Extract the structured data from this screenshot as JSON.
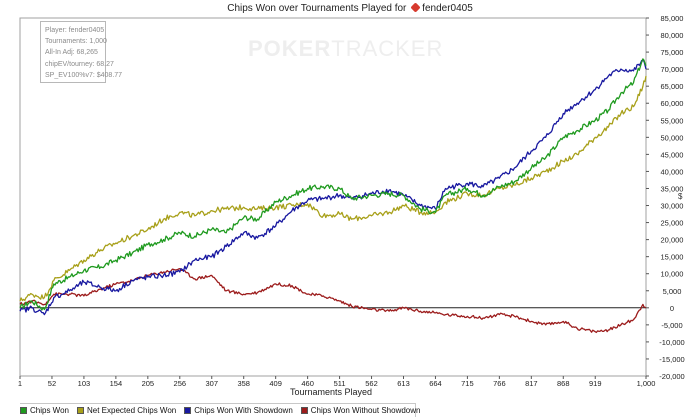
{
  "title": {
    "prefix": "Chips Won over Tournaments Played for",
    "player": "fender0405",
    "brand_icon": "pokertracker-spade-icon"
  },
  "watermark": {
    "bold": "POKER",
    "light": "TRACKER"
  },
  "infobox": {
    "lines": [
      "Player: fender0405",
      "Tournaments: 1,000",
      "All-In Adj: 68,265",
      "chipEV/tourney: 68.27",
      "SP_EV100%v7: $408.77"
    ]
  },
  "legend": [
    {
      "label": "Chips Won",
      "color": "#1f9a1f"
    },
    {
      "label": "Net Expected Chips Won",
      "color": "#a8a01a"
    },
    {
      "label": "Chips Won With Showdown",
      "color": "#1818a0"
    },
    {
      "label": "Chips Won Without Showdown",
      "color": "#9c1c1c"
    }
  ],
  "chart_data": {
    "type": "line",
    "title": "Chips Won over Tournaments Played for fender0405",
    "xlabel": "Tournaments Played",
    "ylabel": "$",
    "xlim": [
      1,
      1000
    ],
    "ylim": [
      -20000,
      85000
    ],
    "x_ticks": [
      1,
      52,
      103,
      154,
      205,
      256,
      307,
      358,
      409,
      460,
      511,
      562,
      613,
      664,
      715,
      766,
      817,
      868,
      919,
      1000
    ],
    "x_tick_labels": [
      "1",
      "52",
      "103",
      "154",
      "205",
      "256",
      "307",
      "358",
      "409",
      "460",
      "511",
      "562",
      "613",
      "664",
      "715",
      "766",
      "817",
      "868",
      "919",
      "1,000"
    ],
    "y_ticks": [
      -20000,
      -15000,
      -10000,
      -5000,
      0,
      5000,
      10000,
      15000,
      20000,
      25000,
      30000,
      35000,
      40000,
      45000,
      50000,
      55000,
      60000,
      65000,
      70000,
      75000,
      80000,
      85000
    ],
    "y_tick_labels": [
      "-20,000",
      "-15,000",
      "-10,000",
      "-5,000",
      "0",
      "5,000",
      "10,000",
      "15,000",
      "20,000",
      "25,000",
      "30,000",
      "35,000",
      "40,000",
      "45,000",
      "50,000",
      "55,000",
      "60,000",
      "65,000",
      "70,000",
      "75,000",
      "80,000",
      "85,000"
    ],
    "legend_position": "bottom-left",
    "grid": false,
    "series": [
      {
        "name": "Chips Won",
        "color": "#1f9a1f",
        "x": [
          1,
          20,
          40,
          55,
          80,
          103,
          130,
          154,
          180,
          205,
          230,
          256,
          280,
          307,
          330,
          358,
          380,
          409,
          435,
          460,
          485,
          511,
          530,
          562,
          590,
          613,
          640,
          664,
          680,
          715,
          740,
          766,
          790,
          817,
          840,
          868,
          890,
          919,
          940,
          960,
          980,
          995,
          1000
        ],
        "y": [
          0,
          2000,
          -500,
          7000,
          9000,
          11000,
          12000,
          14000,
          16000,
          18500,
          20000,
          22000,
          21000,
          23000,
          22000,
          26500,
          26000,
          31000,
          33000,
          35000,
          35500,
          35000,
          32000,
          33000,
          33500,
          33000,
          29000,
          28000,
          33000,
          35000,
          33000,
          35500,
          37000,
          41000,
          44000,
          50000,
          52000,
          55000,
          58000,
          63000,
          66000,
          73000,
          71000
        ]
      },
      {
        "name": "Net Expected Chips Won",
        "color": "#a8a01a",
        "x": [
          1,
          20,
          40,
          55,
          80,
          103,
          130,
          154,
          180,
          205,
          230,
          256,
          280,
          307,
          330,
          358,
          380,
          409,
          435,
          460,
          485,
          511,
          530,
          562,
          590,
          613,
          640,
          664,
          680,
          715,
          740,
          766,
          790,
          817,
          840,
          868,
          890,
          919,
          940,
          960,
          980,
          995,
          1000
        ],
        "y": [
          2000,
          4000,
          3000,
          8000,
          11000,
          14000,
          17000,
          19000,
          21000,
          23000,
          26000,
          28000,
          27000,
          28500,
          29000,
          29500,
          29000,
          29500,
          30000,
          30500,
          27000,
          27500,
          26000,
          27000,
          28000,
          30000,
          28000,
          28000,
          31000,
          33500,
          33000,
          35000,
          36000,
          38000,
          40000,
          43000,
          45000,
          50000,
          53000,
          57000,
          59000,
          65000,
          68000
        ]
      },
      {
        "name": "Chips Won With Showdown",
        "color": "#1818a0",
        "x": [
          1,
          20,
          40,
          55,
          80,
          103,
          130,
          154,
          180,
          205,
          230,
          256,
          280,
          307,
          330,
          358,
          380,
          409,
          435,
          460,
          485,
          511,
          530,
          562,
          590,
          613,
          640,
          664,
          680,
          715,
          740,
          766,
          790,
          817,
          840,
          868,
          890,
          919,
          940,
          960,
          980,
          995,
          1000
        ],
        "y": [
          -1000,
          0,
          -2000,
          3000,
          5000,
          7500,
          6000,
          5000,
          8000,
          9000,
          9500,
          10500,
          14000,
          15000,
          18000,
          22000,
          20500,
          24000,
          28500,
          31500,
          32000,
          33000,
          32000,
          33500,
          34500,
          33000,
          30000,
          29000,
          35000,
          36500,
          35500,
          38000,
          41000,
          46000,
          50000,
          57000,
          60000,
          64000,
          68000,
          70000,
          69500,
          72500,
          70000
        ]
      },
      {
        "name": "Chips Won Without Showdown",
        "color": "#9c1c1c",
        "x": [
          1,
          20,
          40,
          55,
          80,
          103,
          130,
          154,
          180,
          205,
          230,
          256,
          280,
          307,
          330,
          358,
          380,
          409,
          435,
          460,
          485,
          511,
          530,
          562,
          590,
          613,
          640,
          664,
          680,
          715,
          740,
          766,
          790,
          817,
          840,
          868,
          890,
          919,
          940,
          960,
          980,
          995,
          1000
        ],
        "y": [
          1000,
          2000,
          1000,
          4000,
          4000,
          3500,
          5500,
          7000,
          8000,
          9500,
          10500,
          11500,
          8500,
          9500,
          5000,
          4000,
          4500,
          7000,
          6500,
          4000,
          3500,
          2000,
          500,
          -500,
          -1000,
          0,
          -1000,
          -1500,
          -2000,
          -2500,
          -3000,
          -2000,
          -2500,
          -4000,
          -5000,
          -4000,
          -6000,
          -7000,
          -6500,
          -5000,
          -3500,
          1000,
          0
        ]
      }
    ]
  }
}
